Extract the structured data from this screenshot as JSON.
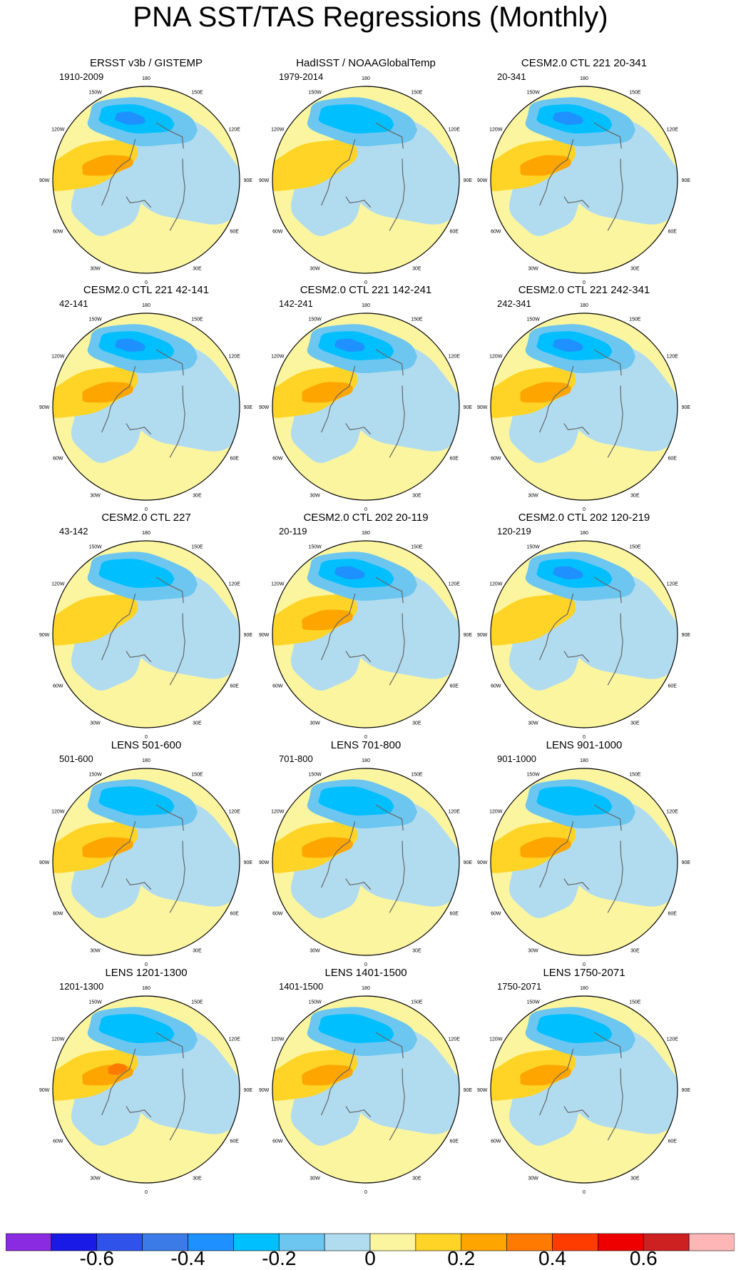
{
  "chart_data": {
    "type": "contour-map",
    "title": "PNA SST/TAS Regressions (Monthly)",
    "projection": "north-polar-stereographic",
    "longitude_labels": [
      "180",
      "150E",
      "120E",
      "90E",
      "60E",
      "30E",
      "0",
      "30W",
      "60W",
      "90W",
      "120W",
      "150W"
    ],
    "panels": [
      {
        "title": "ERSST v3b / GISTEMP",
        "period": "1910-2009",
        "min_value": -0.4,
        "max_value": 0.3
      },
      {
        "title": "HadISST / NOAAGlobalTemp",
        "period": "1979-2014",
        "min_value": -0.3,
        "max_value": 0.2
      },
      {
        "title": "CESM2.0 CTL 221 20-341",
        "period": "20-341",
        "min_value": -0.4,
        "max_value": 0.3
      },
      {
        "title": "CESM2.0 CTL 221 42-141",
        "period": "42-141",
        "min_value": -0.4,
        "max_value": 0.3
      },
      {
        "title": "CESM2.0 CTL 221 142-241",
        "period": "142-241",
        "min_value": -0.4,
        "max_value": 0.3
      },
      {
        "title": "CESM2.0 CTL 221 242-341",
        "period": "242-341",
        "min_value": -0.4,
        "max_value": 0.3
      },
      {
        "title": "CESM2.0 CTL 227",
        "period": "43-142",
        "min_value": -0.3,
        "max_value": 0.2
      },
      {
        "title": "CESM2.0 CTL 202 20-119",
        "period": "20-119",
        "min_value": -0.4,
        "max_value": 0.3
      },
      {
        "title": "CESM2.0 CTL 202 120-219",
        "period": "120-219",
        "min_value": -0.4,
        "max_value": 0.2
      },
      {
        "title": "LENS 501-600",
        "period": "501-600",
        "min_value": -0.3,
        "max_value": 0.3
      },
      {
        "title": "LENS 701-800",
        "period": "701-800",
        "min_value": -0.3,
        "max_value": 0.3
      },
      {
        "title": "LENS 901-1000",
        "period": "901-1000",
        "min_value": -0.3,
        "max_value": 0.3
      },
      {
        "title": "LENS 1201-1300",
        "period": "1201-1300",
        "min_value": -0.3,
        "max_value": 0.4
      },
      {
        "title": "LENS 1401-1500",
        "period": "1401-1500",
        "min_value": -0.3,
        "max_value": 0.3
      },
      {
        "title": "LENS 1750-2071",
        "period": "1750-2071",
        "min_value": -0.3,
        "max_value": 0.3
      }
    ],
    "colorbar": {
      "levels": [
        -0.7,
        -0.6,
        -0.5,
        -0.4,
        -0.3,
        -0.2,
        -0.1,
        0,
        0.1,
        0.2,
        0.3,
        0.4,
        0.5,
        0.6,
        0.7
      ],
      "colors": [
        "#8a2be2",
        "#1a1ae6",
        "#2f52ea",
        "#3a7be8",
        "#1e90ff",
        "#00bfff",
        "#6cc6f0",
        "#b1dcf0",
        "#fbf5a0",
        "#ffd426",
        "#ffa500",
        "#ff7a00",
        "#ff3c00",
        "#ee0000",
        "#cd2020",
        "#ffb6b6"
      ],
      "tick_labels": [
        "-0.6",
        "-0.4",
        "-0.2",
        "0",
        "0.2",
        "0.4",
        "0.6"
      ],
      "tick_values": [
        -0.6,
        -0.4,
        -0.2,
        0,
        0.2,
        0.4,
        0.6
      ]
    }
  }
}
